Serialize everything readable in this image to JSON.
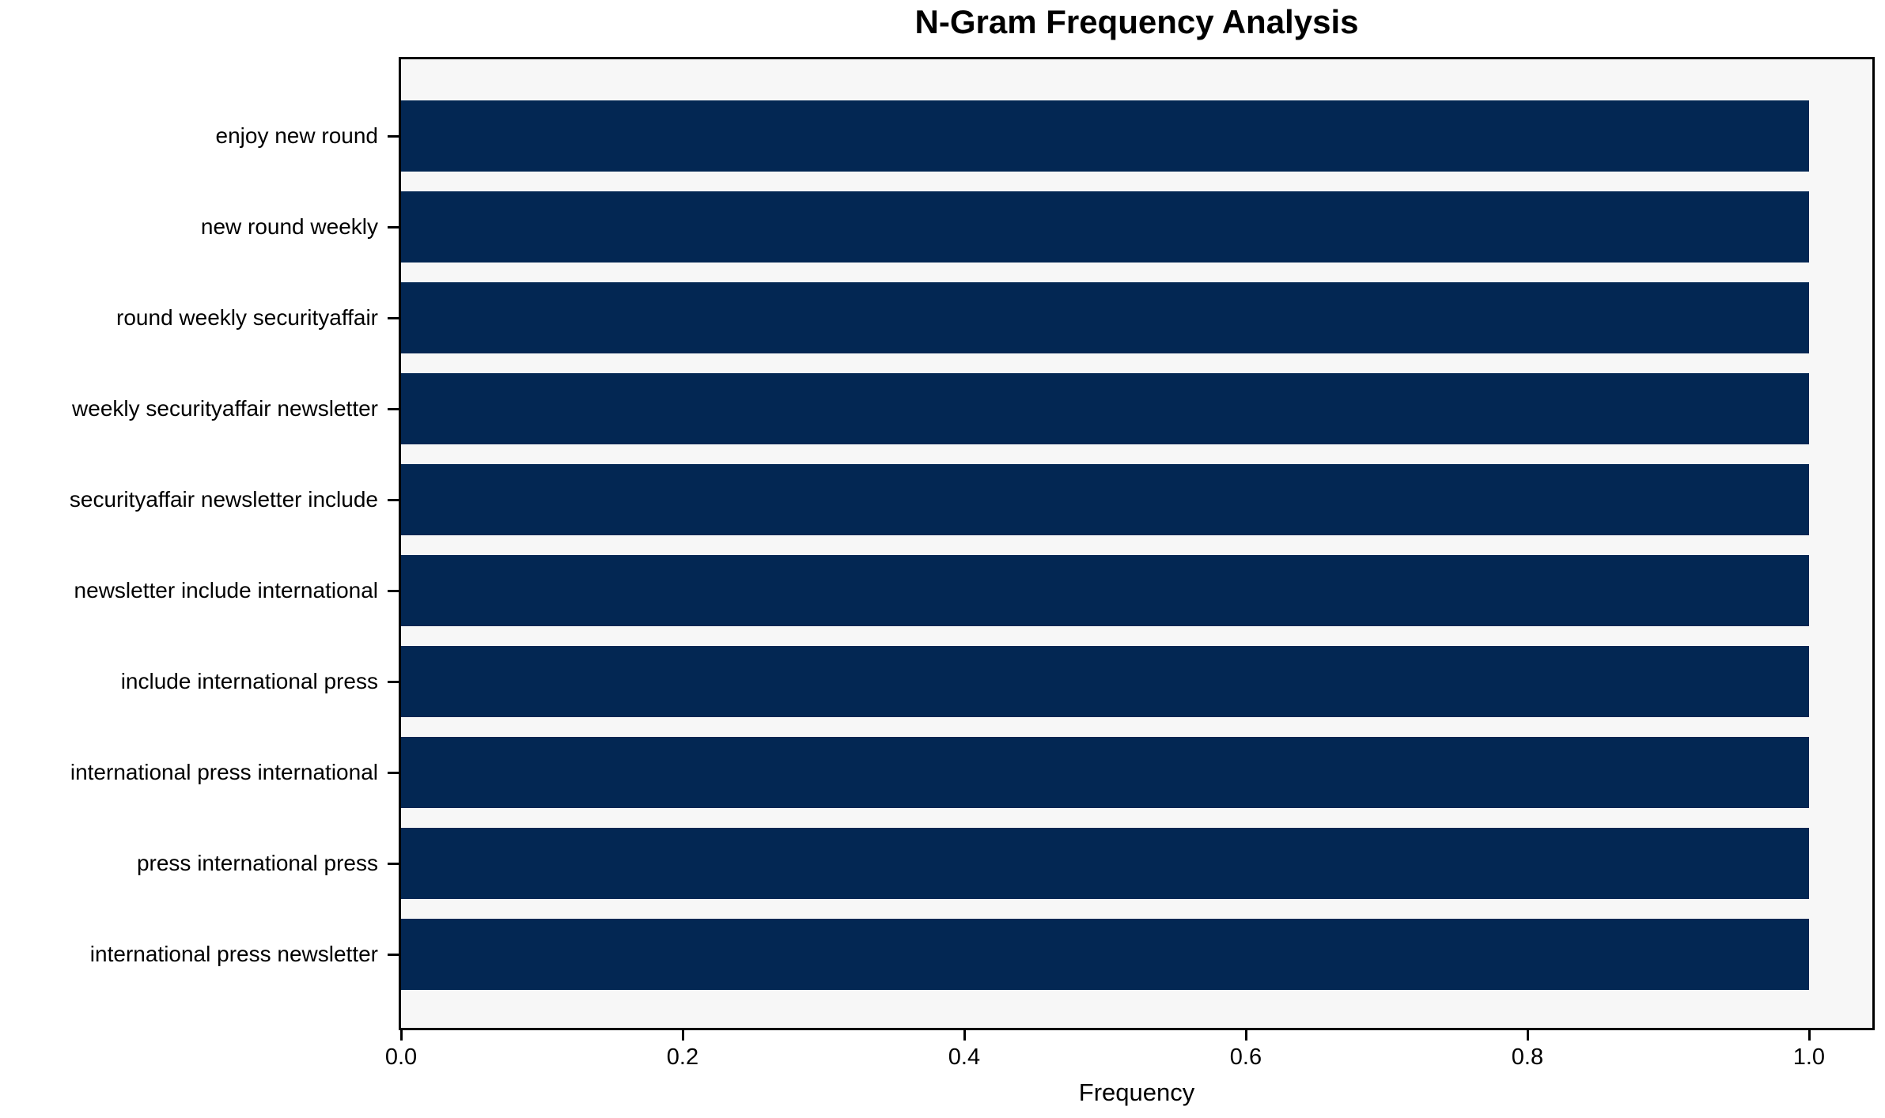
{
  "chart_data": {
    "type": "bar",
    "orientation": "horizontal",
    "title": "N-Gram Frequency Analysis",
    "categories": [
      "enjoy new round",
      "new round weekly",
      "round weekly securityaffair",
      "weekly securityaffair newsletter",
      "securityaffair newsletter include",
      "newsletter include international",
      "include international press",
      "international press international",
      "press international press",
      "international press newsletter"
    ],
    "values": [
      1.0,
      1.0,
      1.0,
      1.0,
      1.0,
      1.0,
      1.0,
      1.0,
      1.0,
      1.0
    ],
    "xlabel": "Frequency",
    "ylabel": "",
    "xlim": [
      0.0,
      1.045
    ],
    "xticks": [
      0.0,
      0.2,
      0.4,
      0.6,
      0.8,
      1.0
    ],
    "xtick_labels": [
      "0.0",
      "0.2",
      "0.4",
      "0.6",
      "0.8",
      "1.0"
    ],
    "grid": false,
    "legend": false,
    "colors": {
      "bar": "#032753",
      "plot_background": "#f7f7f7",
      "figure_background": "#ffffff",
      "axis": "#000000",
      "text": "#000000"
    }
  }
}
